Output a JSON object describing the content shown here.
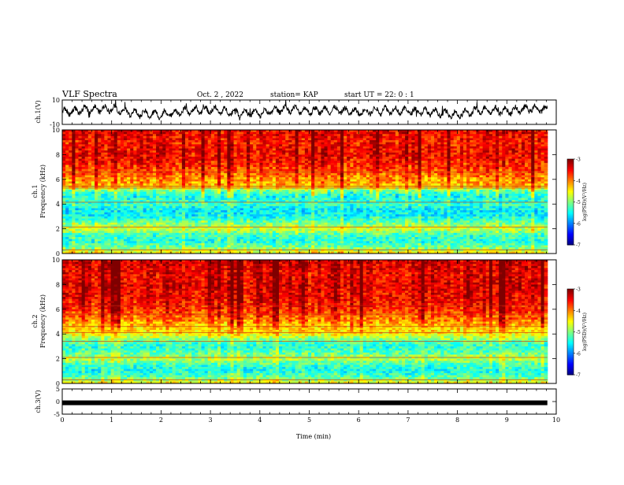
{
  "header": {
    "title": "VLF Spectra",
    "date": "Oct. 2 , 2022",
    "station": "station= KAP",
    "start": "start  UT  =  22: 0  : 1"
  },
  "chart_data": [
    {
      "type": "line",
      "name": "ch1-waveform",
      "title": "",
      "ylabel": "ch.1(V)",
      "ylim": [
        -10,
        10
      ],
      "ytick_labels": [
        "-10",
        "10"
      ],
      "x_range_min": [
        0,
        9.82
      ],
      "x": [
        0,
        0.5,
        1.0,
        1.5,
        2.0,
        2.5,
        3.0,
        3.5,
        4.0,
        4.5,
        5.0,
        5.5,
        6.0,
        6.5,
        7.0,
        7.5,
        8.0,
        8.5,
        9.0,
        9.5,
        9.82
      ],
      "values": [
        0,
        2,
        3,
        -1,
        -2,
        1,
        2,
        0,
        -1,
        3,
        1,
        2,
        0,
        2,
        1,
        0,
        -2,
        2,
        1,
        3,
        2
      ],
      "color": "#000000"
    },
    {
      "type": "heatmap",
      "name": "ch1-spectrogram",
      "ylabel": "ch.1\nFrequency (kHz)",
      "ylabel_line1": "ch.1",
      "ylabel_line2": "Frequency  (kHz)",
      "ylim": [
        0,
        10
      ],
      "ytick_labels": [
        "0",
        "2",
        "4",
        "6",
        "8",
        "10"
      ],
      "x_range_min": [
        0,
        9.82
      ],
      "freq_profile_khz": [
        0,
        0.5,
        1,
        1.5,
        2,
        2.5,
        3,
        3.5,
        4,
        4.5,
        5,
        5.5,
        6,
        6.5,
        7,
        7.5,
        8,
        8.5,
        9,
        9.5,
        10
      ],
      "log_psd_profile": [
        -4.3,
        -5.0,
        -5.3,
        -5.2,
        -4.6,
        -5.0,
        -5.4,
        -5.5,
        -5.2,
        -5.3,
        -5.0,
        -4.0,
        -3.9,
        -3.7,
        -3.5,
        -3.4,
        -3.3,
        -3.3,
        -3.4,
        -3.3,
        -3.3
      ],
      "colorbar": {
        "label": "log(PSD)(V²/Hz)",
        "range": [
          -7,
          -3
        ],
        "tick_labels": [
          "-3",
          "-4",
          "-5",
          "-6",
          "-7"
        ]
      }
    },
    {
      "type": "heatmap",
      "name": "ch2-spectrogram",
      "ylabel": "ch.2\nFrequency (kHz)",
      "ylabel_line1": "ch.2",
      "ylabel_line2": "Frequency  (kHz)",
      "ylim": [
        0,
        10
      ],
      "ytick_labels": [
        "0",
        "2",
        "4",
        "6",
        "8",
        "10"
      ],
      "x_range_min": [
        0,
        9.82
      ],
      "freq_profile_khz": [
        0,
        0.5,
        1,
        1.5,
        2,
        2.5,
        3,
        3.5,
        4,
        4.5,
        5,
        5.5,
        6,
        6.5,
        7,
        7.5,
        8,
        8.5,
        9,
        9.5,
        10
      ],
      "log_psd_profile": [
        -4.4,
        -5.1,
        -5.4,
        -5.2,
        -4.7,
        -5.1,
        -5.3,
        -5.0,
        -4.4,
        -4.2,
        -3.9,
        -3.7,
        -3.5,
        -3.4,
        -3.3,
        -3.3,
        -3.2,
        -3.3,
        -3.3,
        -3.2,
        -3.2
      ],
      "colorbar": {
        "label": "log(PSD)(V²/Hz)",
        "range": [
          -7,
          -3
        ],
        "tick_labels": [
          "-3",
          "-4",
          "-5",
          "-6",
          "-7"
        ]
      }
    },
    {
      "type": "line",
      "name": "ch3-waveform",
      "ylabel": "ch.3(V)",
      "ylim": [
        -5,
        5
      ],
      "ytick_labels": [
        "-5",
        "0",
        "5"
      ],
      "x_range_min": [
        0,
        9.82
      ],
      "x": [
        0,
        9.82
      ],
      "values": [
        -0.5,
        -0.5
      ],
      "color": "#000000"
    }
  ],
  "x_axis": {
    "label": "Time  (min)",
    "range": [
      0,
      10
    ],
    "tick_labels": [
      "0",
      "1",
      "2",
      "3",
      "4",
      "5",
      "6",
      "7",
      "8",
      "9",
      "10"
    ]
  },
  "colors": {
    "jet": [
      "#00007f",
      "#0000ff",
      "#007fff",
      "#00ffff",
      "#7fff7f",
      "#ffff00",
      "#ff7f00",
      "#ff0000",
      "#7f0000"
    ]
  }
}
